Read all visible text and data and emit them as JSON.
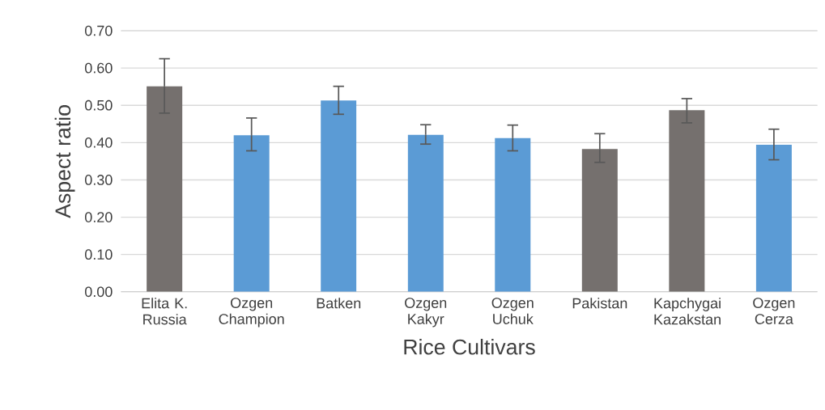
{
  "chart_data": {
    "type": "bar",
    "xlabel": "Rice Cultivars",
    "ylabel": "Aspect ratio",
    "categories": [
      "Elita K. Russia",
      "Ozgen Champion",
      "Batken",
      "Ozgen Kakyr",
      "Ozgen Uchuk",
      "Pakistan",
      "Kapchygai Kazakstan",
      "Ozgen Cerza"
    ],
    "values": [
      0.551,
      0.42,
      0.513,
      0.421,
      0.412,
      0.383,
      0.487,
      0.394
    ],
    "colors": [
      "#75706e",
      "#5b9bd5",
      "#5b9bd5",
      "#5b9bd5",
      "#5b9bd5",
      "#75706e",
      "#75706e",
      "#5b9bd5"
    ],
    "errors": [
      [
        0.479,
        0.625
      ],
      [
        0.378,
        0.466
      ],
      [
        0.476,
        0.551
      ],
      [
        0.396,
        0.448
      ],
      [
        0.378,
        0.447
      ],
      [
        0.347,
        0.424
      ],
      [
        0.453,
        0.518
      ],
      [
        0.354,
        0.436
      ]
    ],
    "ylim": [
      0,
      0.7
    ],
    "yticks": [
      {
        "value": 0,
        "label": "0.00"
      },
      {
        "value": 0.1,
        "label": "0.10"
      },
      {
        "value": 0.2,
        "label": "0.20"
      },
      {
        "value": 0.3,
        "label": "0.30"
      },
      {
        "value": 0.4,
        "label": "0.40"
      },
      {
        "value": 0.5,
        "label": "0.50"
      },
      {
        "value": 0.6,
        "label": "0.60"
      },
      {
        "value": 0.7,
        "label": "0.70"
      }
    ],
    "grid": "y"
  }
}
